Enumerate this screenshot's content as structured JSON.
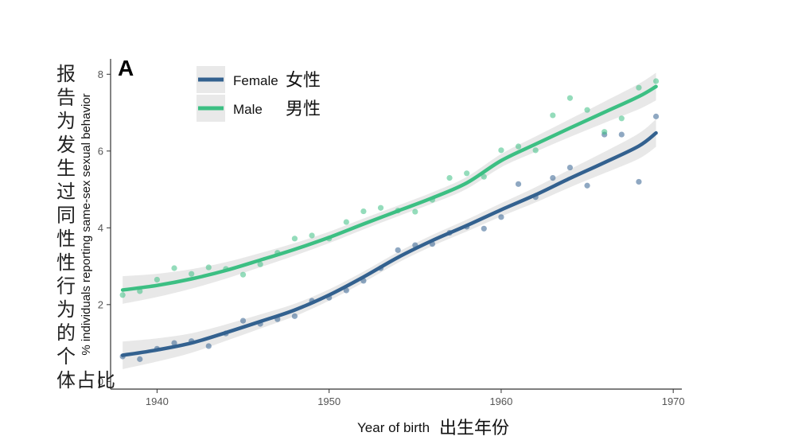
{
  "chart_data": {
    "type": "scatter",
    "panel_label": "A",
    "xlabel": "Year of birth",
    "xlabel_zh": "出生年份",
    "ylabel": "% individuals reporting same-sex sexual behavior",
    "ylabel_zh": "报告为发生过同性性行为的个体占比",
    "xlim": [
      1937.3,
      1970.5
    ],
    "ylim": [
      -0.2,
      8.4
    ],
    "x_ticks": [
      1940,
      1950,
      1960,
      1970
    ],
    "y_ticks": [
      0,
      2,
      4,
      6,
      8
    ],
    "grid": false,
    "legend_position": "top-left",
    "series": [
      {
        "name": "Female",
        "name_zh": "女性",
        "color": "#33618f",
        "points": [
          [
            1938,
            0.65
          ],
          [
            1939,
            0.58
          ],
          [
            1940,
            0.85
          ],
          [
            1941,
            1.0
          ],
          [
            1942,
            1.05
          ],
          [
            1943,
            0.92
          ],
          [
            1944,
            1.25
          ],
          [
            1945,
            1.58
          ],
          [
            1946,
            1.5
          ],
          [
            1947,
            1.62
          ],
          [
            1948,
            1.7
          ],
          [
            1949,
            2.1
          ],
          [
            1950,
            2.18
          ],
          [
            1951,
            2.37
          ],
          [
            1952,
            2.62
          ],
          [
            1953,
            2.95
          ],
          [
            1954,
            3.42
          ],
          [
            1955,
            3.55
          ],
          [
            1956,
            3.58
          ],
          [
            1957,
            3.87
          ],
          [
            1958,
            4.03
          ],
          [
            1959,
            3.98
          ],
          [
            1960,
            4.28
          ],
          [
            1961,
            5.14
          ],
          [
            1962,
            4.8
          ],
          [
            1963,
            5.3
          ],
          [
            1964,
            5.57
          ],
          [
            1965,
            5.1
          ],
          [
            1966,
            6.43
          ],
          [
            1967,
            6.43
          ],
          [
            1968,
            5.2
          ],
          [
            1969,
            6.9
          ]
        ],
        "fit": [
          [
            1938,
            0.68
          ],
          [
            1940,
            0.82
          ],
          [
            1942,
            1.0
          ],
          [
            1944,
            1.27
          ],
          [
            1946,
            1.56
          ],
          [
            1948,
            1.86
          ],
          [
            1950,
            2.25
          ],
          [
            1952,
            2.72
          ],
          [
            1954,
            3.23
          ],
          [
            1956,
            3.67
          ],
          [
            1958,
            4.06
          ],
          [
            1960,
            4.47
          ],
          [
            1962,
            4.86
          ],
          [
            1964,
            5.29
          ],
          [
            1966,
            5.7
          ],
          [
            1968,
            6.13
          ],
          [
            1969,
            6.47
          ]
        ]
      },
      {
        "name": "Male",
        "name_zh": "男性",
        "color": "#3cbf83",
        "points": [
          [
            1938,
            2.25
          ],
          [
            1939,
            2.35
          ],
          [
            1940,
            2.65
          ],
          [
            1941,
            2.95
          ],
          [
            1942,
            2.8
          ],
          [
            1943,
            2.97
          ],
          [
            1944,
            2.93
          ],
          [
            1945,
            2.78
          ],
          [
            1946,
            3.05
          ],
          [
            1947,
            3.35
          ],
          [
            1948,
            3.72
          ],
          [
            1949,
            3.8
          ],
          [
            1950,
            3.72
          ],
          [
            1951,
            4.15
          ],
          [
            1952,
            4.43
          ],
          [
            1953,
            4.52
          ],
          [
            1954,
            4.45
          ],
          [
            1955,
            4.42
          ],
          [
            1956,
            4.73
          ],
          [
            1957,
            5.3
          ],
          [
            1958,
            5.42
          ],
          [
            1959,
            5.33
          ],
          [
            1960,
            6.02
          ],
          [
            1961,
            6.12
          ],
          [
            1962,
            6.02
          ],
          [
            1963,
            6.93
          ],
          [
            1964,
            7.38
          ],
          [
            1965,
            7.07
          ],
          [
            1966,
            6.5
          ],
          [
            1967,
            6.85
          ],
          [
            1968,
            7.65
          ],
          [
            1969,
            7.82
          ]
        ],
        "fit": [
          [
            1938,
            2.38
          ],
          [
            1940,
            2.5
          ],
          [
            1942,
            2.67
          ],
          [
            1944,
            2.89
          ],
          [
            1946,
            3.16
          ],
          [
            1948,
            3.44
          ],
          [
            1950,
            3.75
          ],
          [
            1952,
            4.1
          ],
          [
            1954,
            4.44
          ],
          [
            1956,
            4.78
          ],
          [
            1958,
            5.17
          ],
          [
            1960,
            5.75
          ],
          [
            1962,
            6.18
          ],
          [
            1964,
            6.6
          ],
          [
            1966,
            7.01
          ],
          [
            1968,
            7.42
          ],
          [
            1969,
            7.68
          ]
        ]
      }
    ]
  }
}
